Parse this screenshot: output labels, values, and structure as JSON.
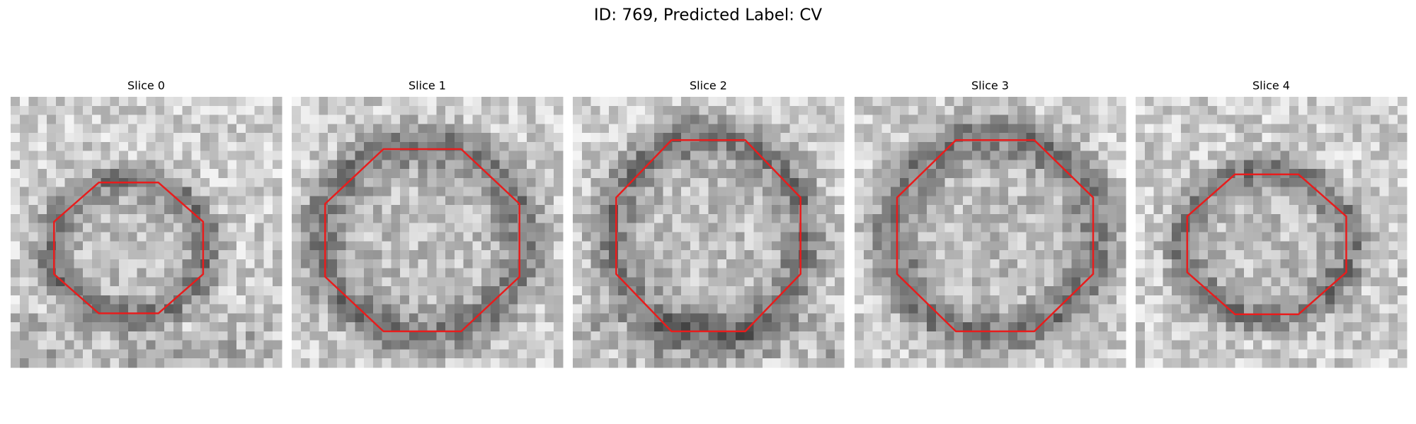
{
  "title": "ID: 769, Predicted Label: CV",
  "panels": [
    {
      "title": "Slice 0"
    },
    {
      "title": "Slice 1"
    },
    {
      "title": "Slice 2"
    },
    {
      "title": "Slice 3"
    },
    {
      "title": "Slice 4"
    }
  ]
}
